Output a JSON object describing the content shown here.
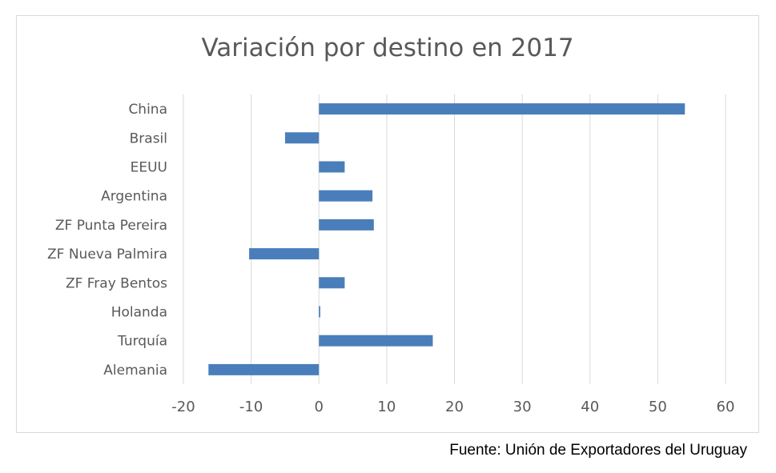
{
  "chart_data": {
    "type": "bar",
    "orientation": "horizontal",
    "title": "Variación por destino en 2017",
    "categories": [
      "China",
      "Brasil",
      "EEUU",
      "Argentina",
      "ZF Punta Pereira",
      "ZF Nueva Palmira",
      "ZF Fray Bentos",
      "Holanda",
      "Turquía",
      "Alemania"
    ],
    "values": [
      54,
      -5,
      3.8,
      7.9,
      8.1,
      -10.3,
      3.8,
      0.2,
      16.8,
      -16.3
    ],
    "xlim": [
      -20,
      60
    ],
    "xticks": [
      -20,
      -10,
      0,
      10,
      20,
      30,
      40,
      50,
      60
    ],
    "grid": "vertical",
    "bar_color": "#4a7ebb",
    "grid_color": "#d9d9d9",
    "text_color": "#595959"
  },
  "source_note": "Fuente: Unión de Exportadores del Uruguay"
}
